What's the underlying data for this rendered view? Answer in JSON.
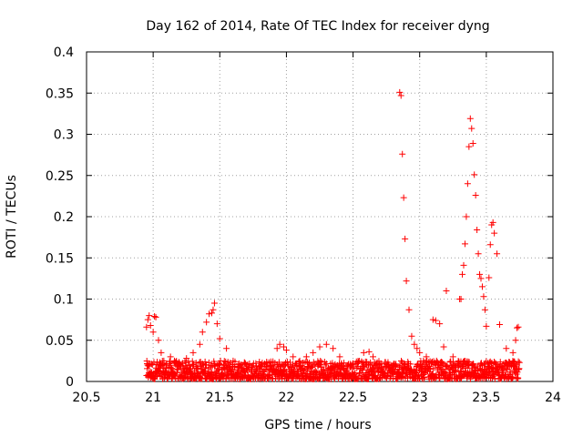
{
  "chart_data": {
    "type": "scatter",
    "title": "Day 162 of 2014, Rate Of TEC Index for receiver dyng",
    "xlabel": "GPS time / hours",
    "ylabel": "ROTI / TECUs",
    "xlim": [
      20.5,
      24
    ],
    "ylim": [
      0,
      0.4
    ],
    "xticks": [
      20.5,
      21,
      21.5,
      22,
      22.5,
      23,
      23.5,
      24
    ],
    "xtick_labels": [
      "20.5",
      "21",
      "21.5",
      "22",
      "22.5",
      "23",
      "23.5",
      "24"
    ],
    "yticks": [
      0,
      0.05,
      0.1,
      0.15,
      0.2,
      0.25,
      0.3,
      0.35,
      0.4
    ],
    "ytick_labels": [
      "0",
      "0.05",
      "0.1",
      "0.15",
      "0.2",
      "0.25",
      "0.3",
      "0.35",
      "0.4"
    ],
    "grid": true,
    "marker": "+",
    "color": "#ff0000",
    "series": [
      {
        "name": "dyng",
        "x": [
          20.95,
          20.96,
          20.97,
          20.98,
          21.0,
          21.01,
          21.02,
          21.04,
          21.06,
          21.08,
          21.1,
          21.13,
          21.16,
          21.2,
          21.25,
          21.3,
          21.35,
          21.37,
          21.4,
          21.42,
          21.44,
          21.45,
          21.46,
          21.48,
          21.5,
          21.55,
          21.6,
          21.7,
          21.8,
          21.9,
          21.93,
          21.95,
          21.98,
          22.0,
          22.05,
          22.1,
          22.15,
          22.2,
          22.25,
          22.3,
          22.35,
          22.4,
          22.5,
          22.58,
          22.62,
          22.65,
          22.7,
          22.8,
          22.85,
          22.86,
          22.87,
          22.88,
          22.89,
          22.9,
          22.92,
          22.94,
          22.96,
          22.98,
          23.0,
          23.05,
          23.1,
          23.12,
          23.15,
          23.18,
          23.2,
          23.25,
          23.3,
          23.31,
          23.32,
          23.33,
          23.34,
          23.35,
          23.36,
          23.37,
          23.38,
          23.39,
          23.4,
          23.41,
          23.42,
          23.43,
          23.44,
          23.45,
          23.46,
          23.47,
          23.48,
          23.49,
          23.5,
          23.52,
          23.53,
          23.54,
          23.55,
          23.56,
          23.58,
          23.6,
          23.65,
          23.7,
          23.72,
          23.73,
          23.74
        ],
        "y": [
          0.066,
          0.075,
          0.08,
          0.068,
          0.06,
          0.079,
          0.078,
          0.05,
          0.035,
          0.025,
          0.02,
          0.03,
          0.025,
          0.02,
          0.028,
          0.035,
          0.045,
          0.06,
          0.072,
          0.082,
          0.083,
          0.087,
          0.095,
          0.07,
          0.052,
          0.04,
          0.025,
          0.015,
          0.012,
          0.02,
          0.04,
          0.045,
          0.042,
          0.038,
          0.03,
          0.025,
          0.03,
          0.035,
          0.042,
          0.045,
          0.04,
          0.03,
          0.022,
          0.035,
          0.036,
          0.03,
          0.02,
          0.015,
          0.351,
          0.347,
          0.276,
          0.223,
          0.173,
          0.122,
          0.087,
          0.055,
          0.045,
          0.04,
          0.035,
          0.03,
          0.075,
          0.074,
          0.07,
          0.042,
          0.11,
          0.03,
          0.1,
          0.1,
          0.13,
          0.141,
          0.167,
          0.2,
          0.24,
          0.285,
          0.319,
          0.307,
          0.289,
          0.251,
          0.226,
          0.184,
          0.155,
          0.13,
          0.125,
          0.115,
          0.103,
          0.087,
          0.067,
          0.126,
          0.166,
          0.19,
          0.193,
          0.18,
          0.155,
          0.069,
          0.04,
          0.035,
          0.05,
          0.065,
          0.066
        ],
        "band": {
          "x_range": [
            20.95,
            23.75
          ],
          "y_range": [
            0.003,
            0.025
          ],
          "note": "dense cluster of points near the baseline across the whole time range"
        }
      }
    ]
  }
}
